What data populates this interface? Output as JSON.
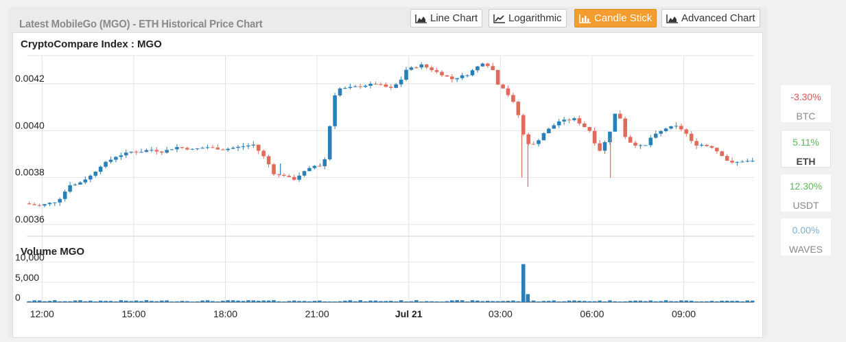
{
  "title": "Latest MobileGo (MGO) - ETH Historical Price Chart",
  "buttons": [
    {
      "label": "Line Chart",
      "icon": "area-chart-icon",
      "active": false
    },
    {
      "label": "Logarithmic",
      "icon": "line-chart-icon",
      "active": false
    },
    {
      "label": "Candle Stick",
      "icon": "bar-chart-icon",
      "active": true
    },
    {
      "label": "Advanced Chart",
      "icon": "area-chart-icon",
      "active": false
    }
  ],
  "colors": {
    "up": "#2a7fb8",
    "down": "#e06b5b",
    "active_button": "#f39c2f",
    "positive": "#5cb85c",
    "negative": "#d9534f",
    "neutral": "#7ab0d6"
  },
  "side": [
    {
      "pct": "-3.30%",
      "sym": "BTC",
      "tone": "negative",
      "selected": false
    },
    {
      "pct": "5.11%",
      "sym": "ETH",
      "tone": "positive",
      "selected": true
    },
    {
      "pct": "12.30%",
      "sym": "USDT",
      "tone": "positive",
      "selected": false
    },
    {
      "pct": "0.00%",
      "sym": "WAVES",
      "tone": "neutral",
      "selected": false
    }
  ],
  "chart_data": {
    "type": "candlestick",
    "title": "CryptoCompare Index : MGO",
    "volume_title": "Volume MGO",
    "price_ticks": [
      "0.0042",
      "0.0040",
      "0.0038",
      "0.0036"
    ],
    "price_tick_values": [
      0.0042,
      0.004,
      0.0038,
      0.0036
    ],
    "ylim": [
      0.00355,
      0.00432
    ],
    "volume_ticks": [
      "10,000",
      "5,000",
      "0"
    ],
    "volume_tick_values": [
      10000,
      5000,
      0
    ],
    "volume_ylim": [
      0,
      12000
    ],
    "x_ticks": [
      "12:00",
      "15:00",
      "18:00",
      "21:00",
      "Jul 21",
      "03:00",
      "06:00",
      "09:00"
    ],
    "x_tick_hours": [
      12,
      15,
      18,
      21,
      24,
      27,
      30,
      33
    ],
    "x_range_hours": [
      11.5,
      35.3
    ],
    "candle_interval_minutes": 10,
    "keypoints_hours": [
      11.5,
      12.0,
      12.3,
      12.6,
      13.0,
      13.2,
      13.7,
      14.0,
      14.5,
      15.0,
      15.3,
      15.6,
      16.0,
      16.5,
      17.0,
      17.5,
      18.0,
      18.5,
      19.0,
      19.4,
      19.7,
      20.0,
      20.3,
      20.6,
      21.0,
      21.3,
      21.5,
      21.7,
      22.0,
      22.5,
      23.0,
      23.5,
      23.8,
      24.0,
      24.5,
      25.0,
      25.5,
      26.0,
      26.5,
      26.8,
      27.0,
      27.2,
      27.6,
      27.9,
      28.2,
      28.5,
      29.0,
      29.5,
      30.0,
      30.3,
      30.6,
      30.9,
      31.2,
      31.5,
      31.8,
      32.0,
      32.5,
      32.8,
      33.1,
      33.4,
      33.7,
      34.0,
      34.3,
      34.6,
      35.0,
      35.3
    ],
    "keypoints_price": [
      0.00369,
      0.00368,
      0.00369,
      0.0037,
      0.00377,
      0.00377,
      0.00381,
      0.00385,
      0.00389,
      0.00391,
      0.00391,
      0.00392,
      0.00391,
      0.00393,
      0.00392,
      0.00393,
      0.00392,
      0.00393,
      0.00394,
      0.00388,
      0.00381,
      0.00381,
      0.00379,
      0.00382,
      0.00385,
      0.00385,
      0.00402,
      0.00418,
      0.00418,
      0.00419,
      0.0042,
      0.00418,
      0.00421,
      0.00426,
      0.00428,
      0.00425,
      0.00422,
      0.00424,
      0.00429,
      0.00427,
      0.0042,
      0.00418,
      0.0041,
      0.00395,
      0.00394,
      0.00399,
      0.00404,
      0.00405,
      0.004,
      0.00391,
      0.00397,
      0.0041,
      0.00396,
      0.00394,
      0.00393,
      0.00397,
      0.00401,
      0.00402,
      0.004,
      0.00394,
      0.00394,
      0.00393,
      0.0039,
      0.00386,
      0.00387,
      0.00387
    ],
    "spikes": [
      {
        "hour": 27.7,
        "low": 0.0038
      },
      {
        "hour": 27.9,
        "low": 0.00376
      },
      {
        "hour": 30.6,
        "low": 0.0038
      },
      {
        "hour": 19.8,
        "high": 0.00386
      },
      {
        "hour": 21.1,
        "high": 0.00386
      }
    ],
    "volume_spike": {
      "hour": 27.75,
      "value": 9500
    }
  }
}
